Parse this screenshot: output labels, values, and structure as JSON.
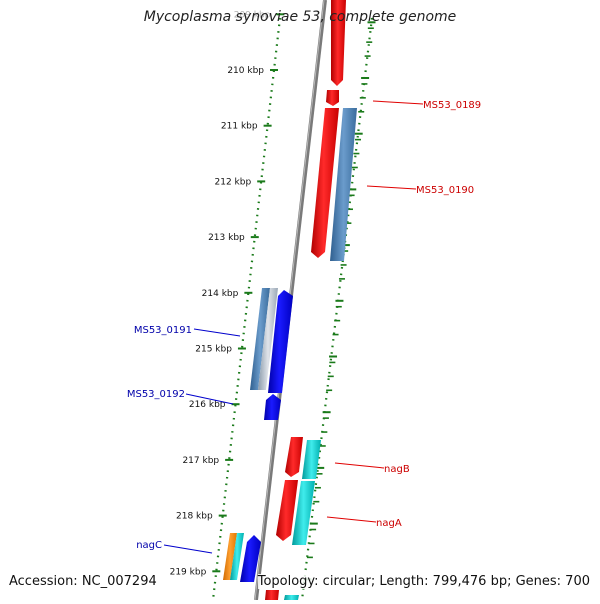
{
  "title": "Mycoplasma synoviae 53, complete genome",
  "footer": {
    "accession": "Accession: NC_007294",
    "summary": "Topology: circular; Length: 799,476 bp; Genes: 700"
  },
  "colors": {
    "forward_gene": "#ff0000",
    "reverse_gene": "#0000ff",
    "steel_gene": "#4a7fb0",
    "cyan_gene": "#00c8c8",
    "orange_gene": "#ff8c00",
    "forward_label": "#cc0000",
    "reverse_label": "#0000aa",
    "tick_color": "#1a7a1a",
    "backbone": "#808080"
  },
  "ruler": {
    "unit": "kbp",
    "ticks": [
      209,
      210,
      211,
      212,
      213,
      214,
      215,
      216,
      217,
      218,
      219
    ],
    "tick_labels": [
      "209 kbp",
      "210 kbp",
      "211 kbp",
      "212 kbp",
      "213 kbp",
      "214 kbp",
      "215 kbp",
      "216 kbp",
      "217 kbp",
      "218 kbp",
      "219 kbp"
    ]
  },
  "gene_labels": {
    "forward": [
      "MS53_0189",
      "MS53_0190",
      "nagB",
      "nagA"
    ],
    "reverse": [
      "MS53_0191",
      "MS53_0192",
      "nagC"
    ]
  }
}
